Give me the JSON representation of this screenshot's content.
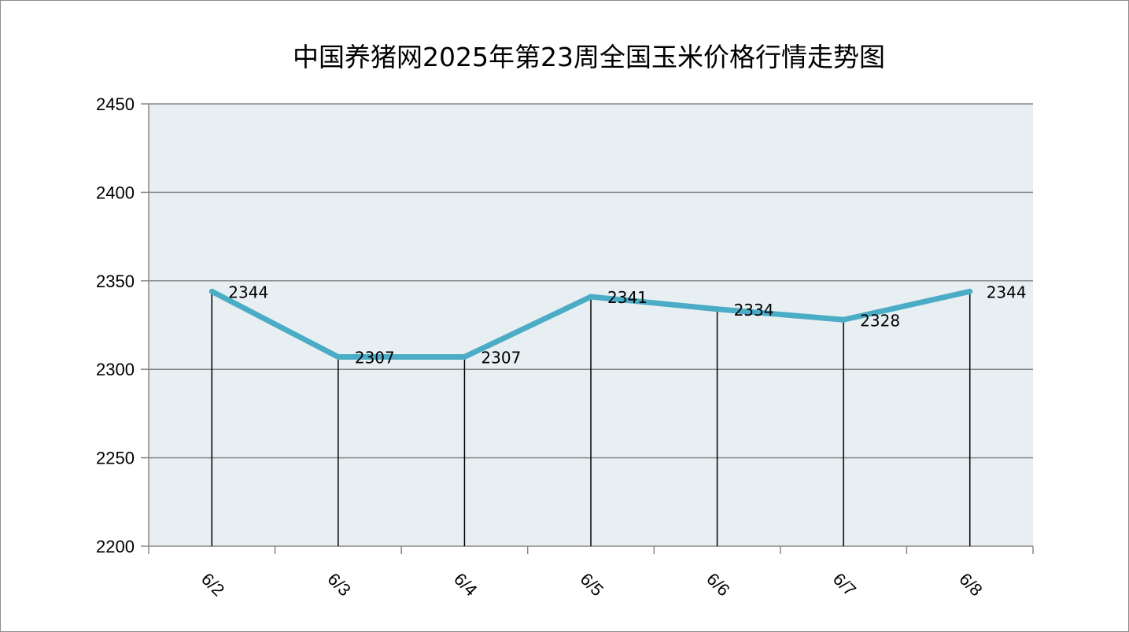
{
  "chart_data": {
    "type": "line",
    "title": "中国养猪网2025年第23周全国玉米价格行情走势图",
    "categories": [
      "6/2",
      "6/3",
      "6/4",
      "6/5",
      "6/6",
      "6/7",
      "6/8"
    ],
    "series": [
      {
        "values": [
          2344,
          2307,
          2307,
          2341,
          2334,
          2328,
          2344
        ]
      }
    ],
    "ylim": [
      2200,
      2450
    ],
    "yticks": [
      2200,
      2250,
      2300,
      2350,
      2400,
      2450
    ],
    "grid": true,
    "drop_lines": true,
    "data_labels": true,
    "legend": "none",
    "colors": {
      "line": "#4bacc6",
      "plot_bg": "#e8eff3",
      "grid": "#888888",
      "drop_line": "#000000"
    }
  }
}
